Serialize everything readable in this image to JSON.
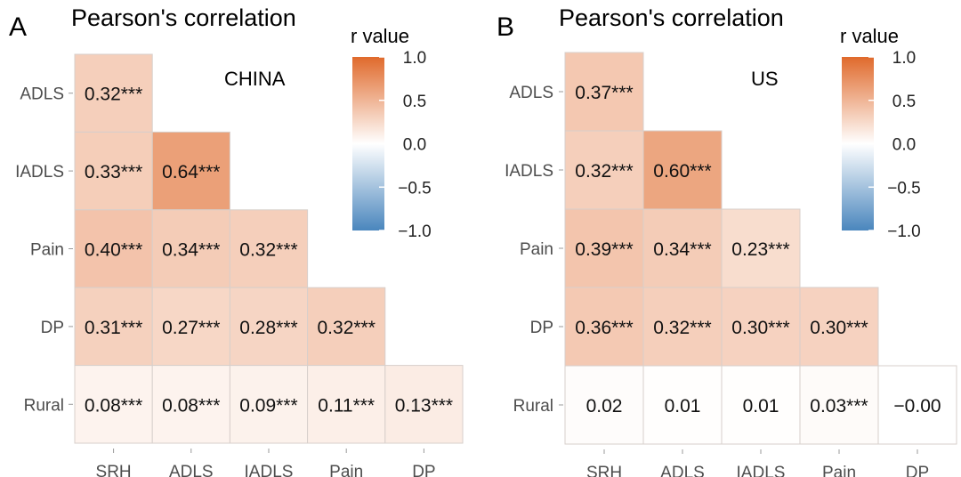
{
  "panels": [
    {
      "letter": "A",
      "title": "Pearson's correlation",
      "region": "CHINA",
      "legend_title": "r value",
      "legend_ticks": [
        "1.0",
        "0.5",
        "0.0",
        "−0.5",
        "−1.0"
      ],
      "rows": [
        "ADLS",
        "IADLS",
        "Pain",
        "DP",
        "Rural"
      ],
      "cols": [
        "SRH",
        "ADLS",
        "IADLS",
        "Pain",
        "DP"
      ]
    },
    {
      "letter": "B",
      "title": "Pearson's correlation",
      "region": "US",
      "legend_title": "r value",
      "legend_ticks": [
        "1.0",
        "0.5",
        "0.0",
        "−0.5",
        "−1.0"
      ],
      "rows": [
        "ADLS",
        "IADLS",
        "Pain",
        "DP",
        "Rural"
      ],
      "cols": [
        "SRH",
        "ADLS",
        "IADLS",
        "Pain",
        "DP"
      ]
    }
  ],
  "chart_data": [
    {
      "type": "heatmap",
      "title": "Pearson's correlation",
      "subtitle": "CHINA",
      "legend_title": "r value",
      "color_scale": {
        "min": -1.0,
        "max": 1.0,
        "low": "#4a86bd",
        "mid": "#ffffff",
        "high": "#e06a2c"
      },
      "rows": [
        "ADLS",
        "IADLS",
        "Pain",
        "DP",
        "Rural"
      ],
      "cols": [
        "SRH",
        "ADLS",
        "IADLS",
        "Pain",
        "DP"
      ],
      "values": [
        [
          0.32
        ],
        [
          0.33,
          0.64
        ],
        [
          0.4,
          0.34,
          0.32
        ],
        [
          0.31,
          0.27,
          0.28,
          0.32
        ],
        [
          0.08,
          0.08,
          0.09,
          0.11,
          0.13
        ]
      ],
      "labels": [
        [
          "0.32***"
        ],
        [
          "0.33***",
          "0.64***"
        ],
        [
          "0.40***",
          "0.34***",
          "0.32***"
        ],
        [
          "0.31***",
          "0.27***",
          "0.28***",
          "0.32***"
        ],
        [
          "0.08***",
          "0.08***",
          "0.09***",
          "0.11***",
          "0.13***"
        ]
      ]
    },
    {
      "type": "heatmap",
      "title": "Pearson's correlation",
      "subtitle": "US",
      "legend_title": "r value",
      "color_scale": {
        "min": -1.0,
        "max": 1.0,
        "low": "#4a86bd",
        "mid": "#ffffff",
        "high": "#e06a2c"
      },
      "rows": [
        "ADLS",
        "IADLS",
        "Pain",
        "DP",
        "Rural"
      ],
      "cols": [
        "SRH",
        "ADLS",
        "IADLS",
        "Pain",
        "DP"
      ],
      "values": [
        [
          0.37
        ],
        [
          0.32,
          0.6
        ],
        [
          0.39,
          0.34,
          0.23
        ],
        [
          0.36,
          0.32,
          0.3,
          0.3
        ],
        [
          0.02,
          0.01,
          0.01,
          0.03,
          -0.0
        ]
      ],
      "labels": [
        [
          "0.37***"
        ],
        [
          "0.32***",
          "0.60***"
        ],
        [
          "0.39***",
          "0.34***",
          "0.23***"
        ],
        [
          "0.36***",
          "0.32***",
          "0.30***",
          "0.30***"
        ],
        [
          "0.02",
          "0.01",
          "0.01",
          "0.03***",
          "−0.00"
        ]
      ]
    }
  ]
}
